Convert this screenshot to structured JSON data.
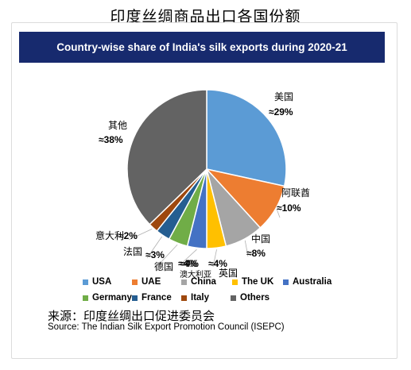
{
  "page_title": "印度丝绸商品出口各国份额",
  "source_cn": "来源：印度丝绸出口促进委员会",
  "source_en": "Source: The Indian Silk Export Promotion Council (ISEPC)",
  "chart_data": {
    "type": "pie",
    "title": "Country-wise share of India's silk exports during 2020-21",
    "slices": [
      {
        "legend": "USA",
        "label": "美国",
        "value_label": "≈29%",
        "value": 29,
        "color": "#5b9bd5"
      },
      {
        "legend": "UAE",
        "label": "阿联酋",
        "value_label": "≈10%",
        "value": 10,
        "color": "#ed7d31"
      },
      {
        "legend": "China",
        "label": "中国",
        "value_label": "≈8%",
        "value": 8,
        "color": "#a5a5a5"
      },
      {
        "legend": "The UK",
        "label": "英国",
        "value_label": "≈4%",
        "value": 4,
        "color": "#ffc000"
      },
      {
        "legend": "Australia",
        "label": "澳大利亚",
        "value_label": "≈4%",
        "value": 4,
        "color": "#4472c4"
      },
      {
        "legend": "Germany",
        "label": "德国",
        "value_label": "≈4%",
        "value": 4,
        "color": "#70ad47"
      },
      {
        "legend": "France",
        "label": "法国",
        "value_label": "≈3%",
        "value": 3,
        "color": "#255e91"
      },
      {
        "legend": "Italy",
        "label": "意大利",
        "value_label": "≈2%",
        "value": 2,
        "color": "#9e480e"
      },
      {
        "legend": "Others",
        "label": "其他",
        "value_label": "≈38%",
        "value": 38,
        "color": "#636363"
      }
    ],
    "legend_position": "bottom"
  }
}
